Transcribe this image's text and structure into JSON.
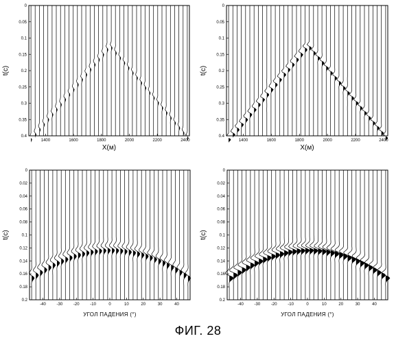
{
  "figure_caption": "ФИГ. 28",
  "chart_data": [
    {
      "type": "seismic_gather",
      "panel": "top-left",
      "xlabel": "X(м)",
      "ylabel": "t(c)",
      "xlim": [
        1280,
        2430
      ],
      "ylim": [
        0.4,
        0
      ],
      "x_ticks": [
        1400,
        1600,
        1800,
        2000,
        2200,
        2400
      ],
      "y_ticks": [
        0,
        0.05,
        0.1,
        0.15,
        0.2,
        0.25,
        0.3,
        0.35,
        0.4
      ],
      "trace_count": 38,
      "event": {
        "shape": "hyperbola",
        "apex_x": 1860,
        "apex_t": 0.12,
        "edge_t": 0.4
      },
      "wavelet_amplitude": 0.35
    },
    {
      "type": "seismic_gather",
      "panel": "top-right",
      "xlabel": "X(м)",
      "ylabel": "t(c)",
      "xlim": [
        1280,
        2430
      ],
      "ylim": [
        0.4,
        0
      ],
      "x_ticks": [
        1400,
        1600,
        1800,
        2000,
        2200,
        2400
      ],
      "y_ticks": [
        0,
        0.05,
        0.1,
        0.15,
        0.2,
        0.25,
        0.3,
        0.35,
        0.4
      ],
      "trace_count": 38,
      "event": {
        "shape": "hyperbola",
        "apex_x": 1860,
        "apex_t": 0.12,
        "edge_t": 0.4
      },
      "wavelet_amplitude": 0.75
    },
    {
      "type": "seismic_gather",
      "panel": "bottom-left",
      "xlabel": "УГОЛ ПАДЕНИЯ (°)",
      "ylabel": "t(c)",
      "xlim": [
        -48,
        48
      ],
      "ylim": [
        0.2,
        0
      ],
      "x_ticks": [
        -40,
        -30,
        -20,
        -10,
        0,
        10,
        20,
        30,
        40
      ],
      "y_ticks": [
        0,
        0.02,
        0.04,
        0.06,
        0.08,
        0.1,
        0.12,
        0.14,
        0.16,
        0.18,
        0.2
      ],
      "trace_count": 38,
      "event": {
        "shape": "arc",
        "center_t": 0.12,
        "edge_t": 0.165
      },
      "wavelet_amplitude": 0.9
    },
    {
      "type": "seismic_gather",
      "panel": "bottom-right",
      "xlabel": "УГОЛ ПАДЕНИЯ (°)",
      "ylabel": "t(c)",
      "xlim": [
        -48,
        48
      ],
      "ylim": [
        0.2,
        0
      ],
      "x_ticks": [
        -40,
        -30,
        -20,
        -10,
        0,
        10,
        20,
        30,
        40
      ],
      "y_ticks": [
        0,
        0.02,
        0.04,
        0.06,
        0.08,
        0.1,
        0.12,
        0.14,
        0.16,
        0.18,
        0.2
      ],
      "trace_count": 38,
      "event": {
        "shape": "arc",
        "center_t": 0.12,
        "edge_t": 0.165
      },
      "wavelet_amplitude": 1.4
    }
  ]
}
